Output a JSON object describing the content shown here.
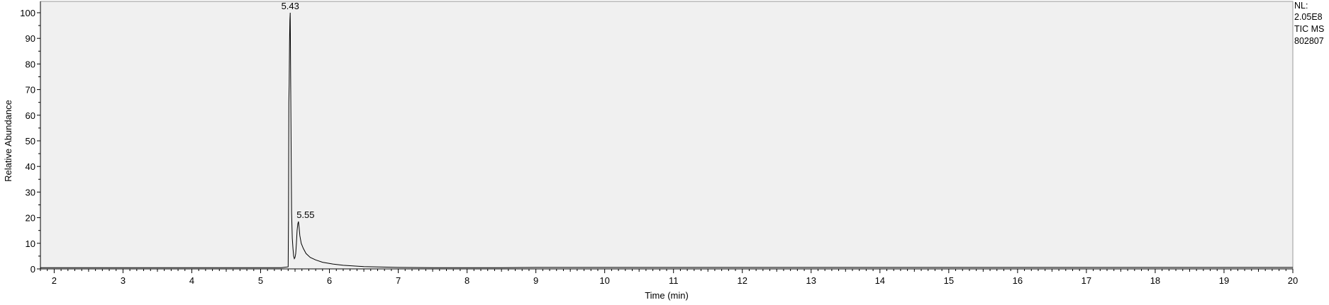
{
  "chart_data": {
    "type": "line",
    "xlabel": "Time (min)",
    "ylabel": "Relative Abundance",
    "xlim": [
      1.8,
      20.0
    ],
    "ylim": [
      0,
      105
    ],
    "xticks": [
      2,
      3,
      4,
      5,
      6,
      7,
      8,
      9,
      10,
      11,
      12,
      13,
      14,
      15,
      16,
      17,
      18,
      19,
      20
    ],
    "yticks": [
      0,
      10,
      20,
      30,
      40,
      50,
      60,
      70,
      80,
      90,
      100
    ],
    "grid": false,
    "info_text": [
      "NL:",
      "2.05E8",
      "TIC  MS",
      "802807"
    ],
    "peak_labels": [
      {
        "label": "5.43",
        "x": 5.43,
        "y": 100
      },
      {
        "label": "5.55",
        "x": 5.55,
        "y": 18.5
      }
    ],
    "series": [
      {
        "x": [
          1.8,
          2.5,
          3.0,
          3.5,
          4.0,
          4.5,
          5.0,
          5.3,
          5.4,
          5.405,
          5.41,
          5.415,
          5.42,
          5.425,
          5.43,
          5.435,
          5.44,
          5.445,
          5.45,
          5.46,
          5.47,
          5.48,
          5.49,
          5.5,
          5.51,
          5.52,
          5.53,
          5.54,
          5.55,
          5.56,
          5.57,
          5.59,
          5.62,
          5.66,
          5.72,
          5.8,
          5.9,
          6.05,
          6.2,
          6.5,
          7.0,
          7.5,
          8.0,
          8.5,
          9.0,
          9.5,
          10.0,
          11.0,
          12.0,
          13.0,
          14.0,
          15.0,
          16.0,
          17.0,
          18.0,
          19.0,
          20.0
        ],
        "values": [
          0.5,
          0.5,
          0.5,
          0.5,
          0.5,
          0.5,
          0.5,
          0.5,
          0.8,
          20,
          65,
          72,
          88,
          97,
          100,
          80,
          60,
          40,
          22,
          12,
          8,
          5,
          4,
          4.5,
          6,
          10,
          15,
          17.5,
          18.5,
          16,
          13,
          10,
          8,
          6,
          4.5,
          3.5,
          2.6,
          1.9,
          1.4,
          0.9,
          0.6,
          0.5,
          0.5,
          0.5,
          0.6,
          0.6,
          0.6,
          0.6,
          0.6,
          0.6,
          0.6,
          0.6,
          0.6,
          0.6,
          0.6,
          0.6,
          0.6
        ]
      }
    ]
  }
}
